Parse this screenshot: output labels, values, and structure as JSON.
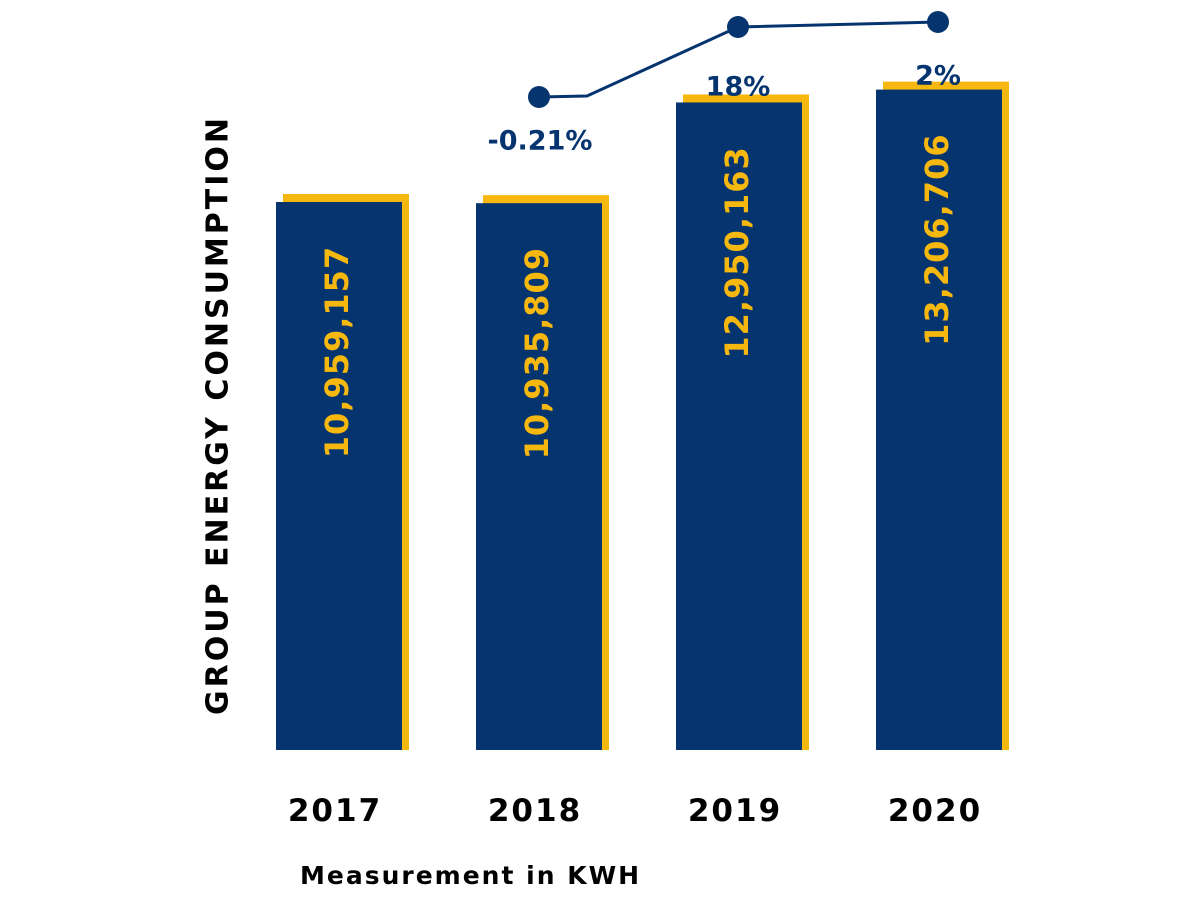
{
  "chart_data": {
    "type": "bar",
    "categories": [
      "2017",
      "2018",
      "2019",
      "2020"
    ],
    "values": [
      10959157,
      10935809,
      12950163,
      13206706
    ],
    "value_labels": [
      "10,959,157",
      "10,935,809",
      "12,950,163",
      "13,206,706"
    ],
    "growth_line": {
      "type": "line",
      "categories": [
        "2018",
        "2019",
        "2020"
      ],
      "labels": [
        "-0.21%",
        "18%",
        "2%"
      ]
    },
    "title": "",
    "ylabel": "GROUP ENERGY CONSUMPTION",
    "xlabel": "Measurement in KWH",
    "ylim": [
      0,
      14000000
    ],
    "grid": false,
    "legend": "none"
  },
  "colors": {
    "bar": "#06346F",
    "bar_accent": "#F6B80E",
    "value_text": "#F6B80E",
    "line": "#06346F",
    "axis_text": "#000000"
  }
}
